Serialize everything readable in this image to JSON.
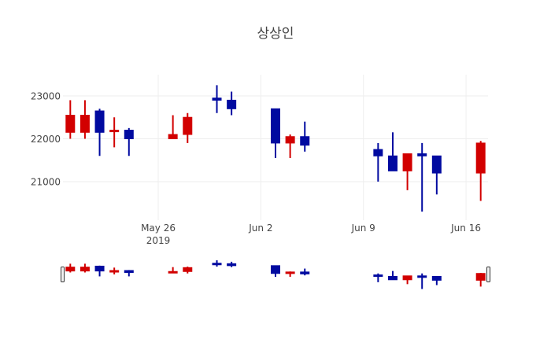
{
  "chart_data": {
    "type": "candlestick",
    "title": "상상인",
    "xlabel": "",
    "ylabel": "",
    "x_range": [
      "2019-05-19 12:00",
      "2019-06-17 12:00"
    ],
    "ylim": [
      20100,
      23495
    ],
    "yticks": [
      21000,
      22000,
      23000
    ],
    "xticks": [
      {
        "date": "2019-05-26",
        "label": "May 26",
        "sublabel": "2019"
      },
      {
        "date": "2019-06-02",
        "label": "Jun 2",
        "sublabel": ""
      },
      {
        "date": "2019-06-09",
        "label": "Jun 9",
        "sublabel": ""
      },
      {
        "date": "2019-06-16",
        "label": "Jun 16",
        "sublabel": ""
      }
    ],
    "grid": true,
    "increasing_color": "#d20000",
    "decreasing_color": "#000aa0",
    "rangeslider": true,
    "x": [
      "2019-05-20",
      "2019-05-21",
      "2019-05-22",
      "2019-05-23",
      "2019-05-24",
      "2019-05-27",
      "2019-05-28",
      "2019-05-30",
      "2019-05-31",
      "2019-06-03",
      "2019-06-04",
      "2019-06-05",
      "2019-06-10",
      "2019-06-11",
      "2019-06-12",
      "2019-06-13",
      "2019-06-14",
      "2019-06-17"
    ],
    "open": [
      22150,
      22150,
      22650,
      22200,
      22200,
      22000,
      22100,
      22950,
      22900,
      22700,
      21900,
      22050,
      21750,
      21600,
      21250,
      21650,
      21600,
      21200
    ],
    "high": [
      22900,
      22900,
      22700,
      22500,
      22250,
      22550,
      22600,
      23250,
      23100,
      22700,
      22100,
      22400,
      21900,
      22150,
      21650,
      21900,
      21600,
      21950
    ],
    "low": [
      22000,
      22000,
      21600,
      21800,
      21600,
      22000,
      21900,
      22600,
      22550,
      21550,
      21550,
      21700,
      21000,
      21250,
      20800,
      20300,
      20700,
      20550
    ],
    "close": [
      22550,
      22550,
      22150,
      22200,
      22000,
      22100,
      22500,
      22900,
      22700,
      21900,
      22050,
      21850,
      21600,
      21250,
      21650,
      21600,
      21200,
      21900
    ]
  }
}
